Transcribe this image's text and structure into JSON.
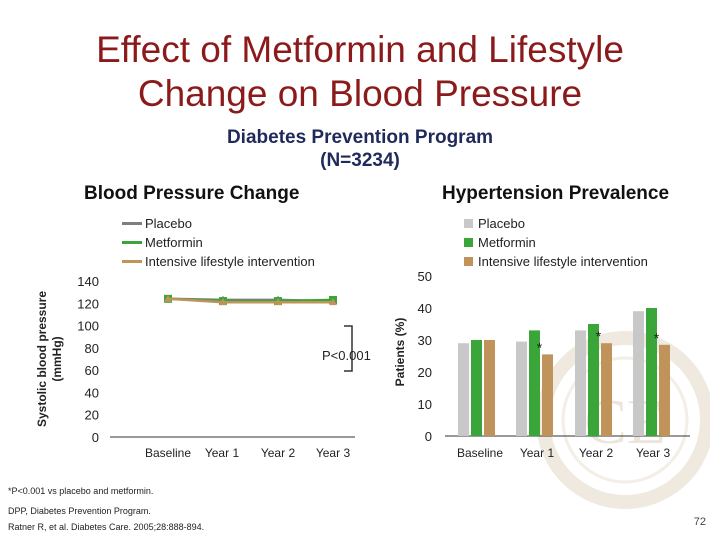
{
  "slide": {
    "title": "Effect of Metformin and Lifestyle Change on Blood Pressure",
    "subtitle_line1": "Diabetes Prevention Program",
    "subtitle_line2": "(N=3234)",
    "footnote_1": "*P<0.001 vs placebo and metformin.",
    "footnote_2": "DPP, Diabetes Prevention Program.",
    "citation": "Ratner R, et al. Diabetes Care. 2005;28:888-894.",
    "slide_number": "72",
    "watermark_text": "CE"
  },
  "colors": {
    "placebo_line": "#7f7f7f",
    "metformin": "#3aa63a",
    "lifestyle": "#c0935a",
    "placebo_bar": "#c8c8c8"
  },
  "chart_data": [
    {
      "type": "line",
      "title": "Blood Pressure Change",
      "ylabel": "Systolic blood pressure (mm​Hg)",
      "ylabel_line1": "Systolic blood pressure",
      "ylabel_line2": "(mm​Hg)",
      "categories": [
        "Baseline",
        "Year 1",
        "Year 2",
        "Year 3"
      ],
      "yticks": [
        0,
        20,
        40,
        60,
        80,
        100,
        120,
        140
      ],
      "ylim": [
        0,
        140
      ],
      "series": [
        {
          "name": "Placebo",
          "values": [
            124,
            123,
            123,
            122
          ]
        },
        {
          "name": "Metformin",
          "values": [
            124,
            122,
            122,
            123
          ]
        },
        {
          "name": "Intensive lifestyle intervention",
          "values": [
            124,
            121,
            121,
            121
          ]
        }
      ],
      "annotation": "P<0.001",
      "legend_position": "top"
    },
    {
      "type": "bar",
      "title": "Hypertension Prevalence",
      "ylabel": "Patients (%)",
      "categories": [
        "Baseline",
        "Year 1",
        "Year 2",
        "Year 3"
      ],
      "yticks": [
        0,
        10,
        20,
        30,
        40,
        50
      ],
      "ylim": [
        0,
        50
      ],
      "series": [
        {
          "name": "Placebo",
          "values": [
            29,
            29.5,
            33,
            39
          ]
        },
        {
          "name": "Metformin",
          "values": [
            30,
            33,
            35,
            40
          ]
        },
        {
          "name": "Intensive lifestyle intervention",
          "values": [
            30,
            25.5,
            29,
            28.5
          ]
        }
      ],
      "significance_marker": "*",
      "significant_categories": [
        "Year 1",
        "Year 2",
        "Year 3"
      ],
      "legend_position": "top"
    }
  ]
}
